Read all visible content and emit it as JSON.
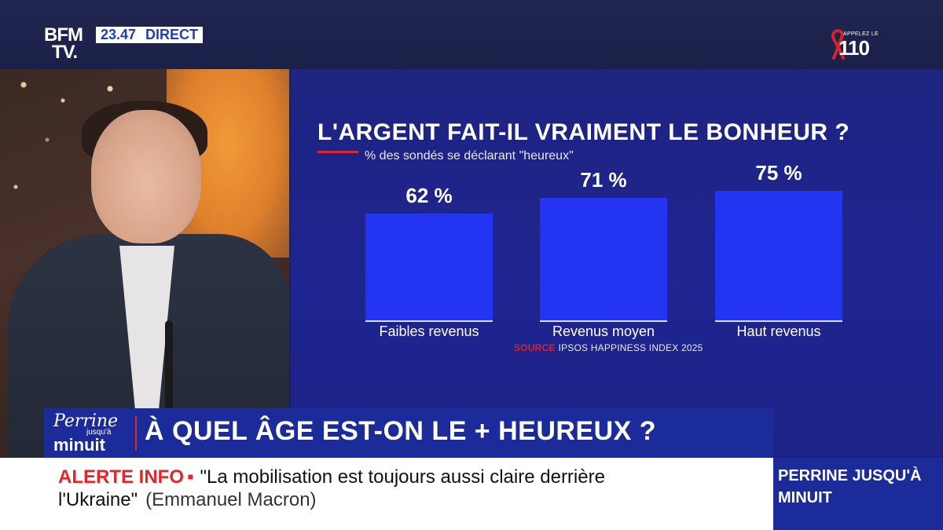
{
  "channel": {
    "logo_line1": "BFM",
    "logo_line2": "TV.",
    "time": "23.47",
    "live_label": "DIRECT"
  },
  "hotline": {
    "small_text": "APPELEZ LE",
    "number": "110",
    "ribbon_color": "#d3242b"
  },
  "graphic": {
    "title": "L'ARGENT FAIT-IL VRAIMENT LE BONHEUR ?",
    "subtitle": "% des sondés se déclarant \"heureux\"",
    "source_label": "SOURCE",
    "source_text": "IPSOS HAPPINESS INDEX 2025"
  },
  "chart_data": {
    "type": "bar",
    "title": "L'ARGENT FAIT-IL VRAIMENT LE BONHEUR ?",
    "subtitle": "% des sondés se déclarant \"heureux\"",
    "categories": [
      "Faibles revenus",
      "Revenus moyen",
      "Haut revenus"
    ],
    "values": [
      62,
      71,
      75
    ],
    "value_labels": [
      "62 %",
      "71 %",
      "75 %"
    ],
    "unit": "%",
    "bar_color": "#2434f3",
    "grid": false
  },
  "lower_third": {
    "show_name": "Perrine",
    "show_small": "jusqu'à",
    "show_big": "minuit",
    "headline": "À QUEL ÂGE EST-ON LE + HEUREUX ?"
  },
  "alert": {
    "label": "ALERTE INFO",
    "dot": "▪",
    "quote_line1": "\"La mobilisation est toujours aussi claire derrière",
    "quote_line2": "l'Ukraine\"",
    "author": "(Emmanuel Macron)"
  },
  "side_box": {
    "line1": "PERRINE JUSQU'À",
    "line2": "MINUIT"
  }
}
